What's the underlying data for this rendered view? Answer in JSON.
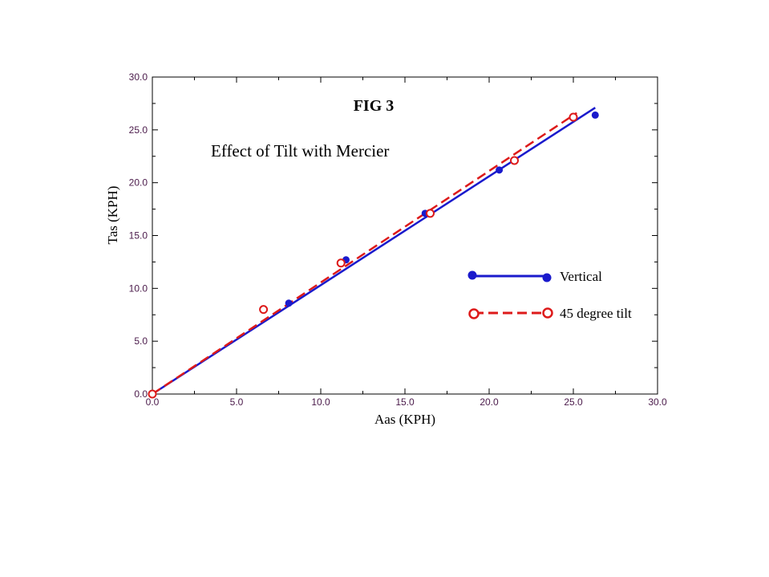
{
  "chart_data": {
    "type": "scatter",
    "title": "FIG 3",
    "subtitle": "Effect of Tilt with Mercier",
    "xlabel": "Aas (KPH)",
    "ylabel": "Tas (KPH)",
    "xlim": [
      0,
      30
    ],
    "ylim": [
      0,
      30
    ],
    "x_ticks": [
      "0.0",
      "5.0",
      "10.0",
      "15.0",
      "20.0",
      "25.0",
      "30.0"
    ],
    "y_ticks": [
      "0.0",
      "5.0",
      "10.0",
      "15.0",
      "20.0",
      "25.0",
      "30.0"
    ],
    "legend_position": "right",
    "grid": false,
    "series": [
      {
        "name": "Vertical",
        "color": "#1a1acc",
        "marker": "filled-circle",
        "line": "solid",
        "points": [
          [
            0,
            0
          ],
          [
            8.1,
            8.6
          ],
          [
            11.5,
            12.7
          ],
          [
            16.2,
            17.1
          ],
          [
            20.6,
            21.2
          ],
          [
            26.3,
            26.4
          ]
        ],
        "fit": [
          [
            0,
            0
          ],
          [
            26.3,
            27.1
          ]
        ]
      },
      {
        "name": "45 degree tilt",
        "color": "#dd1a1a",
        "marker": "open-circle",
        "line": "dashed",
        "points": [
          [
            0,
            0
          ],
          [
            6.6,
            8.0
          ],
          [
            11.2,
            12.4
          ],
          [
            16.5,
            17.1
          ],
          [
            21.5,
            22.1
          ],
          [
            25.0,
            26.2
          ]
        ],
        "fit": [
          [
            0,
            0
          ],
          [
            25.2,
            26.6
          ]
        ]
      }
    ]
  }
}
